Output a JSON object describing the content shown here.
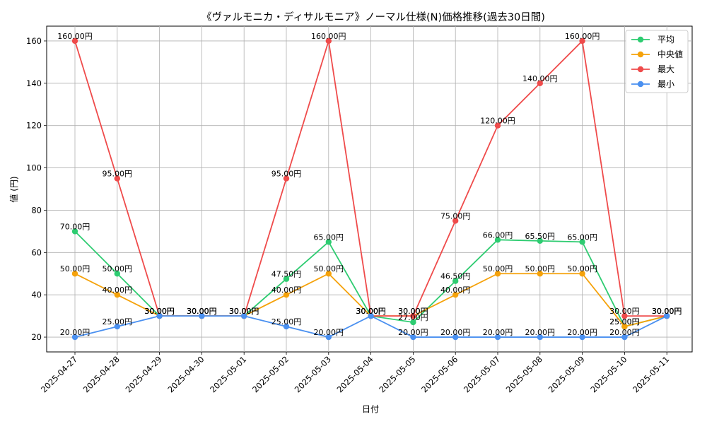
{
  "chart_data": {
    "type": "line",
    "title": "《ヴァルモニカ・ディサルモニア》ノーマル仕様(N)価格推移(過去30日間)",
    "xlabel": "日付",
    "ylabel": "値 (円)",
    "ylim": [
      13,
      167
    ],
    "yticks": [
      20,
      40,
      60,
      80,
      100,
      120,
      140,
      160
    ],
    "grid": true,
    "legend_position": "top-right",
    "label_suffix": "円",
    "categories": [
      "2025-04-27",
      "2025-04-28",
      "2025-04-29",
      "2025-04-30",
      "2025-05-01",
      "2025-05-02",
      "2025-05-03",
      "2025-05-04",
      "2025-05-05",
      "2025-05-06",
      "2025-05-07",
      "2025-05-08",
      "2025-05-09",
      "2025-05-10",
      "2025-05-11"
    ],
    "series": [
      {
        "name": "平均",
        "color": "#2ecc71",
        "values": [
          70,
          50,
          30,
          30,
          30,
          47.5,
          65,
          30,
          27,
          46.5,
          66,
          65.5,
          65,
          25,
          30
        ]
      },
      {
        "name": "中央値",
        "color": "#f5a20a",
        "values": [
          50,
          40,
          30,
          30,
          30,
          40,
          50,
          30,
          30,
          40,
          50,
          50,
          50,
          25,
          30
        ]
      },
      {
        "name": "最大",
        "color": "#ef4b4b",
        "values": [
          160,
          95,
          30,
          30,
          30,
          95,
          160,
          30,
          30,
          75,
          120,
          140,
          160,
          30,
          30
        ]
      },
      {
        "name": "最小",
        "color": "#4a90f0",
        "values": [
          20,
          25,
          30,
          30,
          30,
          25,
          20,
          30,
          20,
          20,
          20,
          20,
          20,
          20,
          30
        ]
      }
    ]
  }
}
